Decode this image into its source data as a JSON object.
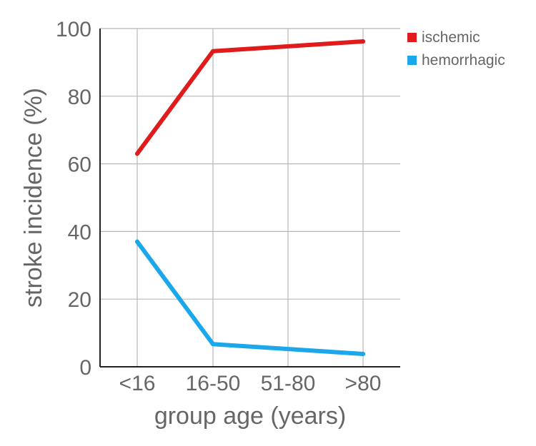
{
  "chart_data": {
    "type": "line",
    "xlabel": "group age (years)",
    "ylabel": "stroke incidence (%)",
    "categories": [
      "<16",
      "16-50",
      "51-80",
      ">80"
    ],
    "ylim": [
      0,
      100
    ],
    "yticks": [
      0,
      20,
      40,
      60,
      80,
      100
    ],
    "grid": true,
    "legend_position": "top-right",
    "series": [
      {
        "name": "ischemic",
        "color": "#e01b1b",
        "x": [
          "<16",
          "16-50",
          ">80"
        ],
        "values": [
          63,
          93.3,
          96.2
        ]
      },
      {
        "name": "hemorrhagic",
        "color": "#1aa7ec",
        "x": [
          "<16",
          "16-50",
          ">80"
        ],
        "values": [
          37,
          6.7,
          3.8
        ]
      }
    ]
  }
}
